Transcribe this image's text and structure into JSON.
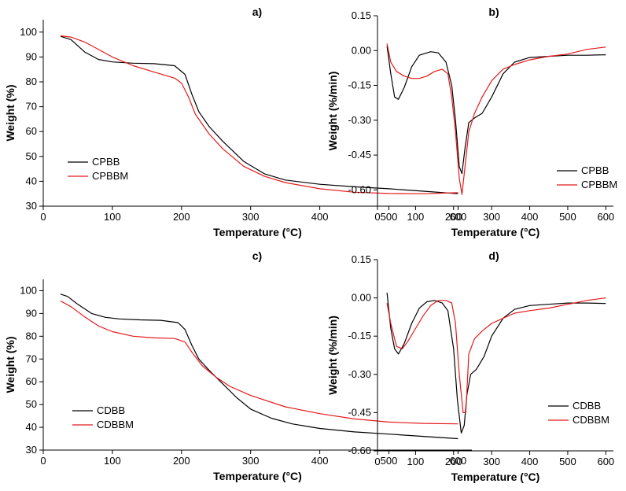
{
  "figure": {
    "background": "#ffffff",
    "series_colors": {
      "black": "#000000",
      "red": "#e41a1c"
    }
  },
  "chart_data": [
    {
      "type": "line",
      "panel_title": "a)",
      "xlabel": "Temperature (°C)",
      "ylabel": "Weight (%)",
      "xlim": [
        0,
        620
      ],
      "ylim": [
        30,
        105
      ],
      "xticks": [
        0,
        100,
        200,
        300,
        400,
        500,
        600
      ],
      "yticks": [
        30,
        40,
        50,
        60,
        70,
        80,
        90,
        100
      ],
      "ytick_labels": [
        "30",
        "40",
        "50",
        "60",
        "70",
        "80",
        "90",
        "100"
      ],
      "legend_position": "bottom-left",
      "series": [
        {
          "name": "CPBB",
          "color": "#000000",
          "x": [
            25,
            40,
            60,
            80,
            100,
            130,
            160,
            190,
            205,
            215,
            225,
            240,
            260,
            290,
            320,
            350,
            400,
            450,
            500,
            550,
            600
          ],
          "y": [
            98.3,
            97,
            92,
            89,
            88,
            87.5,
            87.3,
            86.5,
            83,
            75,
            68,
            62,
            56,
            48,
            43,
            40.5,
            38.8,
            37.8,
            37,
            36,
            35
          ]
        },
        {
          "name": "CPBBM",
          "color": "#e41a1c",
          "x": [
            25,
            40,
            60,
            80,
            100,
            130,
            160,
            190,
            200,
            210,
            220,
            240,
            260,
            290,
            320,
            350,
            400,
            450,
            500,
            550,
            600
          ],
          "y": [
            98.5,
            98,
            96,
            93,
            90,
            86.5,
            84,
            81.5,
            79.5,
            74,
            67,
            59,
            53,
            46,
            42,
            39.5,
            37,
            35.6,
            35.1,
            35,
            35.4
          ]
        }
      ]
    },
    {
      "type": "line",
      "panel_title": "b)",
      "xlabel": "Temperature (°C)",
      "ylabel": "Weight (%/min)",
      "xlim": [
        0,
        620
      ],
      "ylim": [
        -0.67,
        0.15
      ],
      "xticks": [
        0,
        100,
        200,
        300,
        400,
        500,
        600
      ],
      "yticks": [
        0.15,
        0,
        -0.15,
        -0.3,
        -0.45,
        -0.6
      ],
      "ytick_labels": [
        "0.15",
        "0.00",
        "-0.15",
        "-0.30",
        "-0.45",
        "-0.60"
      ],
      "legend_position": "bottom-right",
      "series": [
        {
          "name": "CPBB",
          "color": "#000000",
          "x": [
            25,
            35,
            45,
            55,
            70,
            90,
            110,
            140,
            160,
            180,
            195,
            205,
            215,
            222,
            230,
            240,
            255,
            275,
            300,
            330,
            360,
            400,
            450,
            500,
            550,
            600
          ],
          "y": [
            0.02,
            -0.1,
            -0.2,
            -0.21,
            -0.16,
            -0.07,
            -0.02,
            -0.005,
            -0.01,
            -0.05,
            -0.15,
            -0.3,
            -0.5,
            -0.53,
            -0.42,
            -0.31,
            -0.29,
            -0.27,
            -0.2,
            -0.1,
            -0.05,
            -0.03,
            -0.025,
            -0.02,
            -0.02,
            -0.018
          ]
        },
        {
          "name": "CPBBM",
          "color": "#e41a1c",
          "x": [
            25,
            35,
            50,
            70,
            90,
            110,
            130,
            150,
            170,
            185,
            195,
            205,
            215,
            222,
            230,
            240,
            255,
            275,
            300,
            330,
            360,
            400,
            450,
            500,
            550,
            600
          ],
          "y": [
            0.03,
            -0.05,
            -0.09,
            -0.11,
            -0.12,
            -0.12,
            -0.11,
            -0.09,
            -0.08,
            -0.1,
            -0.2,
            -0.35,
            -0.55,
            -0.62,
            -0.5,
            -0.35,
            -0.27,
            -0.2,
            -0.13,
            -0.08,
            -0.06,
            -0.04,
            -0.025,
            -0.015,
            0.005,
            0.015
          ]
        }
      ]
    },
    {
      "type": "line",
      "panel_title": "c)",
      "xlabel": "Temperature (°C)",
      "ylabel": "Weight (%)",
      "xlim": [
        0,
        620
      ],
      "ylim": [
        30,
        105
      ],
      "xticks": [
        0,
        100,
        200,
        300,
        400,
        500,
        600
      ],
      "yticks": [
        30,
        40,
        50,
        60,
        70,
        80,
        90,
        100
      ],
      "ytick_labels": [
        "30",
        "40",
        "50",
        "60",
        "70",
        "80",
        "90",
        "100"
      ],
      "legend_position": "bottom-left",
      "series": [
        {
          "name": "CDBB",
          "color": "#000000",
          "x": [
            25,
            35,
            50,
            70,
            90,
            110,
            140,
            170,
            195,
            205,
            215,
            225,
            240,
            260,
            280,
            300,
            330,
            360,
            400,
            450,
            500,
            550,
            600
          ],
          "y": [
            98.5,
            97.5,
            94,
            90,
            88.3,
            87.6,
            87.2,
            87,
            86,
            83,
            76,
            70,
            65,
            59,
            53,
            48,
            44,
            41.5,
            39.5,
            38,
            37,
            36,
            35
          ]
        },
        {
          "name": "CDBBM",
          "color": "#e41a1c",
          "x": [
            25,
            40,
            60,
            80,
            100,
            130,
            160,
            190,
            205,
            215,
            230,
            250,
            270,
            300,
            350,
            400,
            450,
            500,
            550,
            600
          ],
          "y": [
            95.5,
            93,
            88.5,
            84.5,
            82,
            80,
            79.3,
            79,
            77.5,
            73,
            67,
            62,
            58,
            54,
            49,
            46,
            43.7,
            42.3,
            41.7,
            41.5
          ]
        }
      ]
    },
    {
      "type": "line",
      "panel_title": "d)",
      "xlabel": "Temperature (°C)",
      "ylabel": "Weight (%/min)",
      "xlim": [
        0,
        620
      ],
      "ylim": [
        -0.6,
        0.15
      ],
      "xticks": [
        0,
        100,
        200,
        300,
        400,
        500,
        600
      ],
      "yticks": [
        0.15,
        0,
        -0.15,
        -0.3,
        -0.45,
        -0.6
      ],
      "ytick_labels": [
        "0.15",
        "0.00",
        "-0.15",
        "-0.30",
        "-0.45",
        "-0.60"
      ],
      "legend_position": "bottom-right",
      "series": [
        {
          "name": "CDBB",
          "color": "#000000",
          "x": [
            25,
            35,
            45,
            55,
            70,
            90,
            110,
            130,
            150,
            170,
            185,
            200,
            210,
            220,
            228,
            235,
            245,
            260,
            280,
            300,
            330,
            360,
            400,
            450,
            500,
            550,
            600
          ],
          "y": [
            0.02,
            -0.12,
            -0.2,
            -0.22,
            -0.18,
            -0.1,
            -0.04,
            -0.015,
            -0.01,
            -0.02,
            -0.05,
            -0.2,
            -0.4,
            -0.53,
            -0.5,
            -0.38,
            -0.3,
            -0.28,
            -0.23,
            -0.15,
            -0.08,
            -0.045,
            -0.03,
            -0.025,
            -0.02,
            -0.02,
            -0.022
          ]
        },
        {
          "name": "CDBBM",
          "color": "#e41a1c",
          "x": [
            25,
            35,
            50,
            65,
            80,
            100,
            120,
            140,
            160,
            180,
            195,
            205,
            215,
            225,
            232,
            240,
            255,
            275,
            300,
            330,
            360,
            400,
            450,
            500,
            550,
            600
          ],
          "y": [
            -0.02,
            -0.1,
            -0.19,
            -0.2,
            -0.17,
            -0.12,
            -0.07,
            -0.03,
            -0.01,
            -0.01,
            -0.02,
            -0.1,
            -0.3,
            -0.45,
            -0.45,
            -0.22,
            -0.16,
            -0.13,
            -0.1,
            -0.08,
            -0.06,
            -0.05,
            -0.04,
            -0.025,
            -0.01,
            0
          ]
        }
      ]
    }
  ]
}
